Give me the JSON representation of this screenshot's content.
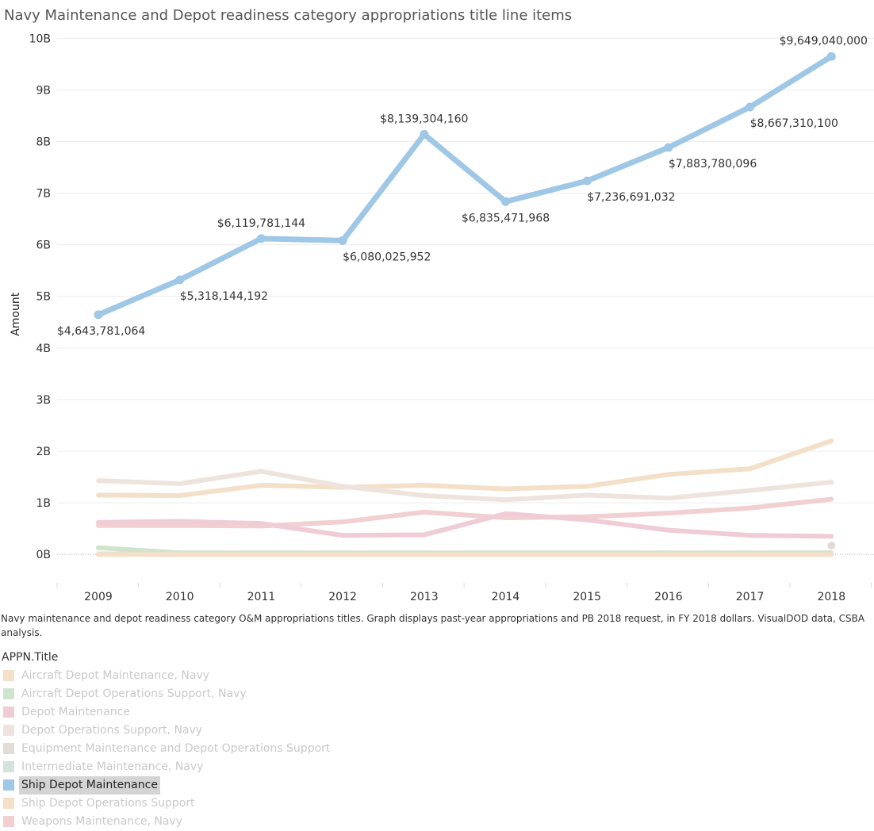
{
  "title": "Navy Maintenance and Depot readiness category appropriations title line items",
  "caption": "Navy maintenance and depot readiness category O&M appropriations titles.  Graph displays past-year appropriations and PB 2018 request, in FY 2018 dollars.  VisualDOD data, CSBA analysis.",
  "legend": {
    "title": "APPN.Title",
    "items": [
      {
        "label": "Aircraft Depot Maintenance, Navy",
        "color": "#f4dfc8",
        "state": "faded"
      },
      {
        "label": "Aircraft Depot Operations Support, Navy",
        "color": "#cfe4cc",
        "state": "faded"
      },
      {
        "label": "Depot Maintenance",
        "color": "#f0cdd6",
        "state": "faded"
      },
      {
        "label": "Depot Operations Support, Navy",
        "color": "#efe4dd",
        "state": "faded"
      },
      {
        "label": "Equipment Maintenance and Depot Operations Support",
        "color": "#e2dcd7",
        "state": "faded"
      },
      {
        "label": "Intermediate Maintenance, Navy",
        "color": "#d2e3de",
        "state": "faded"
      },
      {
        "label": "Ship Depot Maintenance",
        "color": "#9fc7e6",
        "state": "selected"
      },
      {
        "label": "Ship Depot Operations Support",
        "color": "#f4dfc8",
        "state": "faded"
      },
      {
        "label": "Weapons Maintenance, Navy",
        "color": "#f2cfd0",
        "state": "faded"
      }
    ]
  },
  "chart_data": {
    "type": "line",
    "title": "Navy Maintenance and Depot readiness category appropriations title line items",
    "xlabel": "",
    "ylabel": "Amount",
    "x": [
      2009,
      2010,
      2011,
      2012,
      2013,
      2014,
      2015,
      2016,
      2017,
      2018
    ],
    "x_tick_labels": [
      "2009",
      "2010",
      "2011",
      "2012",
      "2013",
      "2014",
      "2015",
      "2016",
      "2017",
      "2018"
    ],
    "y_ticks": [
      0,
      1,
      2,
      3,
      4,
      5,
      6,
      7,
      8,
      9,
      10
    ],
    "y_tick_labels": [
      "0B",
      "1B",
      "2B",
      "3B",
      "4B",
      "5B",
      "6B",
      "7B",
      "8B",
      "9B",
      "10B"
    ],
    "ylim": [
      -0.55,
      10.25
    ],
    "y_unit": "billions",
    "grid": true,
    "highlighted_series": "Ship Depot Maintenance",
    "series": [
      {
        "name": "Ship Depot Maintenance",
        "color": "#9fc7e6",
        "highlighted": true,
        "values": [
          4.643781064,
          5.318144192,
          6.119781144,
          6.080025952,
          8.13930416,
          6.835471968,
          7.236691032,
          7.883780096,
          8.6673101,
          9.64904
        ],
        "labels": [
          "$4,643,781,064",
          "$5,318,144,192",
          "$6,119,781,144",
          "$6,080,025,952",
          "$8,139,304,160",
          "$6,835,471,968",
          "$7,236,691,032",
          "$7,883,780,096",
          "$8,667,310,100",
          "$9,649,040,000"
        ]
      },
      {
        "name": "Aircraft Depot Maintenance, Navy",
        "color": "#f4dfc8",
        "highlighted": false,
        "values": [
          1.15,
          1.14,
          1.34,
          1.3,
          1.34,
          1.27,
          1.32,
          1.55,
          1.66,
          2.2
        ]
      },
      {
        "name": "Depot Operations Support, Navy",
        "color": "#efe4dd",
        "highlighted": false,
        "values": [
          1.43,
          1.37,
          1.61,
          1.32,
          1.14,
          1.06,
          1.15,
          1.09,
          1.24,
          1.4
        ]
      },
      {
        "name": "Weapons Maintenance, Navy",
        "color": "#f2cfd0",
        "highlighted": false,
        "values": [
          0.56,
          0.56,
          0.55,
          0.63,
          0.82,
          0.71,
          0.73,
          0.8,
          0.9,
          1.07
        ]
      },
      {
        "name": "Depot Maintenance",
        "color": "#f0cdd6",
        "highlighted": false,
        "values": [
          0.62,
          0.64,
          0.6,
          0.37,
          0.38,
          0.79,
          0.67,
          0.47,
          0.37,
          0.35
        ]
      },
      {
        "name": "Aircraft Depot Operations Support, Navy",
        "color": "#cfe4cc",
        "highlighted": false,
        "values": [
          0.13,
          0.03,
          0.03,
          0.03,
          0.03,
          0.03,
          0.03,
          0.03,
          0.03,
          0.03
        ]
      },
      {
        "name": "Intermediate Maintenance, Navy",
        "color": "#d2e3de",
        "highlighted": false,
        "values": [
          0.01,
          0.01,
          0.01,
          0.01,
          0.01,
          0.01,
          0.01,
          0.01,
          0.01,
          0.01
        ]
      },
      {
        "name": "Ship Depot Operations Support",
        "color": "#f4dfc8",
        "highlighted": false,
        "values": [
          0.0,
          0.0,
          0.0,
          0.0,
          0.0,
          0.0,
          0.0,
          0.0,
          0.0,
          0.0
        ]
      },
      {
        "name": "Equipment Maintenance and Depot Operations Support",
        "color": "#e2dcd7",
        "highlighted": false,
        "values": [
          null,
          null,
          null,
          null,
          null,
          null,
          null,
          null,
          null,
          0.17
        ]
      }
    ]
  }
}
